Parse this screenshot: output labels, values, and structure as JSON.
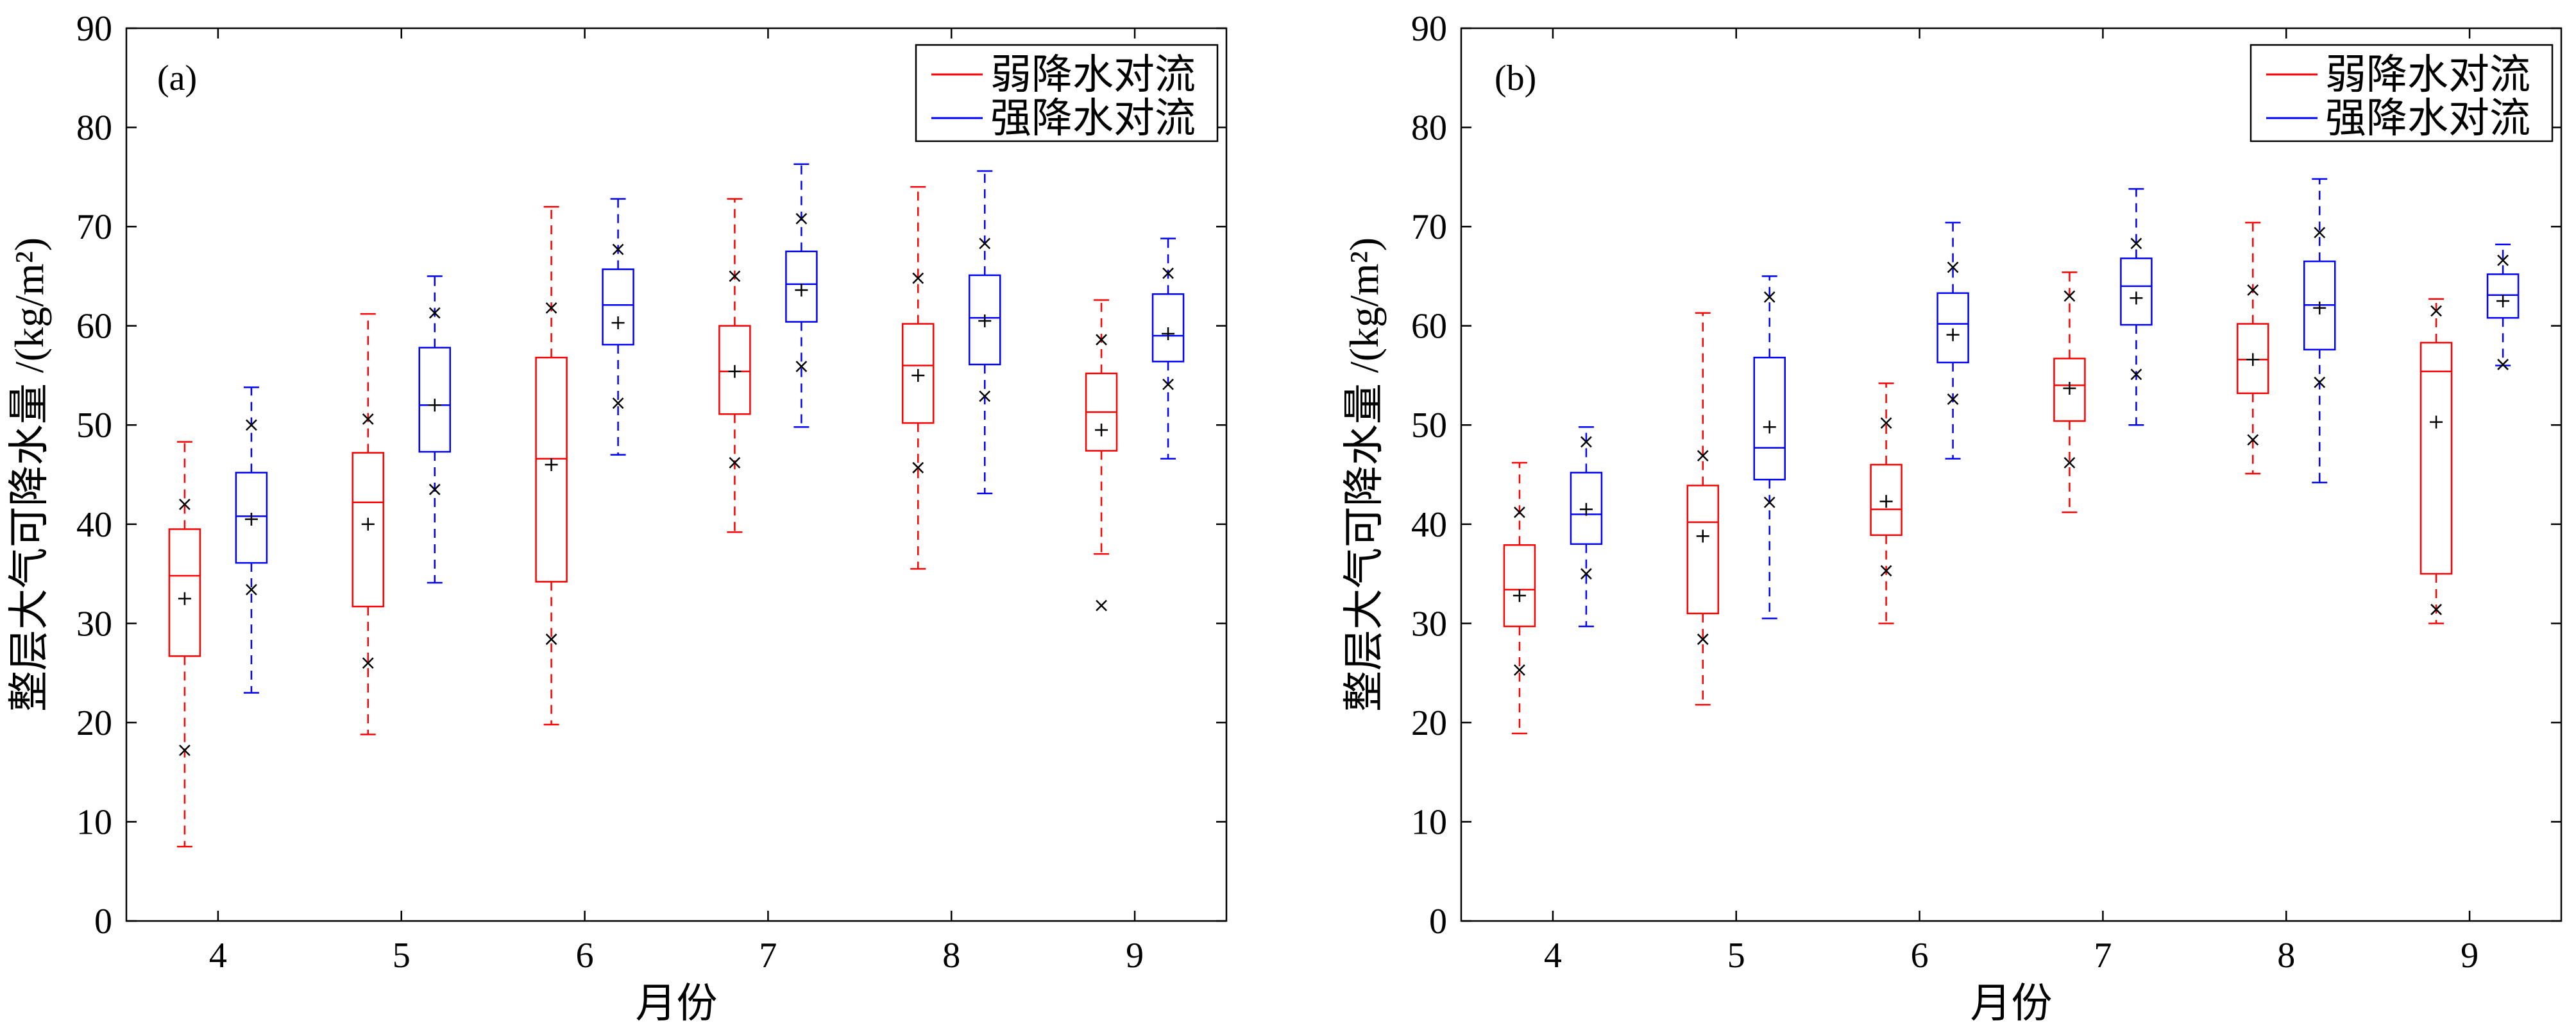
{
  "chart_data": [
    {
      "type": "box",
      "panel_label": "(a)",
      "xlabel": "月份",
      "ylabel": "整层大气可降水量 /(kg/m²)",
      "ylim": [
        0,
        90
      ],
      "yticks": [
        0,
        10,
        20,
        30,
        40,
        50,
        60,
        70,
        80,
        90
      ],
      "categories": [
        "4",
        "5",
        "6",
        "7",
        "8",
        "9"
      ],
      "legend_position": "top-right",
      "series": [
        {
          "name": "弱降水对流",
          "color": "#ff0000",
          "boxes": [
            {
              "whisker_low": 7.5,
              "q1": 26.7,
              "median": 34.8,
              "q3": 39.5,
              "whisker_high": 48.3,
              "mean": 32.5,
              "x_low": 17.2,
              "x_high": 42.0
            },
            {
              "whisker_low": 18.8,
              "q1": 31.7,
              "median": 42.2,
              "q3": 47.2,
              "whisker_high": 61.2,
              "mean": 40.0,
              "x_low": 26.0,
              "x_high": 50.6
            },
            {
              "whisker_low": 19.8,
              "q1": 34.2,
              "median": 46.6,
              "q3": 56.8,
              "whisker_high": 72.0,
              "mean": 46.0,
              "x_low": 28.4,
              "x_high": 61.8
            },
            {
              "whisker_low": 39.2,
              "q1": 51.1,
              "median": 55.4,
              "q3": 60.0,
              "whisker_high": 72.8,
              "mean": 55.4,
              "x_low": 46.2,
              "x_high": 65.0
            },
            {
              "whisker_low": 35.5,
              "q1": 50.2,
              "median": 56.0,
              "q3": 60.2,
              "whisker_high": 74.0,
              "mean": 55.0,
              "x_low": 45.7,
              "x_high": 64.8
            },
            {
              "whisker_low": 37.0,
              "q1": 47.4,
              "median": 51.3,
              "q3": 55.2,
              "whisker_high": 62.6,
              "mean": 49.5,
              "x_low": 31.8,
              "x_high": 58.6
            }
          ]
        },
        {
          "name": "强降水对流",
          "color": "#0000ff",
          "boxes": [
            {
              "whisker_low": 23.0,
              "q1": 36.1,
              "median": 40.8,
              "q3": 45.2,
              "whisker_high": 53.8,
              "mean": 40.5,
              "x_low": 33.4,
              "x_high": 50.0
            },
            {
              "whisker_low": 34.1,
              "q1": 47.3,
              "median": 52.0,
              "q3": 57.8,
              "whisker_high": 65.0,
              "mean": 52.0,
              "x_low": 43.5,
              "x_high": 61.3
            },
            {
              "whisker_low": 47.0,
              "q1": 58.1,
              "median": 62.1,
              "q3": 65.7,
              "whisker_high": 72.8,
              "mean": 60.3,
              "x_low": 52.2,
              "x_high": 67.7
            },
            {
              "whisker_low": 49.8,
              "q1": 60.4,
              "median": 64.2,
              "q3": 67.5,
              "whisker_high": 76.3,
              "mean": 63.6,
              "x_low": 55.9,
              "x_high": 70.8
            },
            {
              "whisker_low": 43.1,
              "q1": 56.1,
              "median": 60.8,
              "q3": 65.1,
              "whisker_high": 75.6,
              "mean": 60.5,
              "x_low": 52.9,
              "x_high": 68.3
            },
            {
              "whisker_low": 46.6,
              "q1": 56.4,
              "median": 59.0,
              "q3": 63.2,
              "whisker_high": 68.8,
              "mean": 59.2,
              "x_low": 54.1,
              "x_high": 65.3
            }
          ]
        }
      ]
    },
    {
      "type": "box",
      "panel_label": "(b)",
      "xlabel": "月份",
      "ylabel": "整层大气可降水量 /(kg/m²)",
      "ylim": [
        0,
        90
      ],
      "yticks": [
        0,
        10,
        20,
        30,
        40,
        50,
        60,
        70,
        80,
        90
      ],
      "categories": [
        "4",
        "5",
        "6",
        "7",
        "8",
        "9"
      ],
      "legend_position": "top-right",
      "series": [
        {
          "name": "弱降水对流",
          "color": "#ff0000",
          "boxes": [
            {
              "whisker_low": 18.9,
              "q1": 29.7,
              "median": 33.4,
              "q3": 37.9,
              "whisker_high": 46.2,
              "mean": 32.8,
              "x_low": 25.3,
              "x_high": 41.2
            },
            {
              "whisker_low": 21.8,
              "q1": 31.0,
              "median": 40.2,
              "q3": 43.9,
              "whisker_high": 61.3,
              "mean": 38.8,
              "x_low": 28.4,
              "x_high": 46.9
            },
            {
              "whisker_low": 30.0,
              "q1": 38.9,
              "median": 41.5,
              "q3": 46.0,
              "whisker_high": 54.2,
              "mean": 42.3,
              "x_low": 35.3,
              "x_high": 50.2
            },
            {
              "whisker_low": 41.2,
              "q1": 50.4,
              "median": 54.0,
              "q3": 56.7,
              "whisker_high": 65.4,
              "mean": 53.7,
              "x_low": 46.2,
              "x_high": 63.0
            },
            {
              "whisker_low": 45.1,
              "q1": 53.2,
              "median": 56.6,
              "q3": 60.2,
              "whisker_high": 70.4,
              "mean": 56.6,
              "x_low": 48.5,
              "x_high": 63.6
            },
            {
              "whisker_low": 30.0,
              "q1": 35.0,
              "median": 55.4,
              "q3": 58.3,
              "whisker_high": 62.7,
              "mean": 50.3,
              "x_low": 31.4,
              "x_high": 61.5
            }
          ]
        },
        {
          "name": "强降水对流",
          "color": "#0000ff",
          "boxes": [
            {
              "whisker_low": 29.7,
              "q1": 38.0,
              "median": 41.0,
              "q3": 45.2,
              "whisker_high": 49.8,
              "mean": 41.5,
              "x_low": 35.0,
              "x_high": 48.3
            },
            {
              "whisker_low": 30.5,
              "q1": 44.5,
              "median": 47.7,
              "q3": 56.8,
              "whisker_high": 65.0,
              "mean": 49.8,
              "x_low": 42.2,
              "x_high": 62.9
            },
            {
              "whisker_low": 46.6,
              "q1": 56.3,
              "median": 60.2,
              "q3": 63.3,
              "whisker_high": 70.4,
              "mean": 59.1,
              "x_low": 52.6,
              "x_high": 65.9
            },
            {
              "whisker_low": 50.0,
              "q1": 60.1,
              "median": 64.0,
              "q3": 66.8,
              "whisker_high": 73.8,
              "mean": 62.8,
              "x_low": 55.1,
              "x_high": 68.3
            },
            {
              "whisker_low": 44.2,
              "q1": 57.6,
              "median": 62.1,
              "q3": 66.5,
              "whisker_high": 74.8,
              "mean": 61.8,
              "x_low": 54.3,
              "x_high": 69.4
            },
            {
              "whisker_low": 56.0,
              "q1": 60.8,
              "median": 63.1,
              "q3": 65.2,
              "whisker_high": 68.2,
              "mean": 62.5,
              "x_low": 56.1,
              "x_high": 66.6
            }
          ]
        }
      ]
    }
  ]
}
